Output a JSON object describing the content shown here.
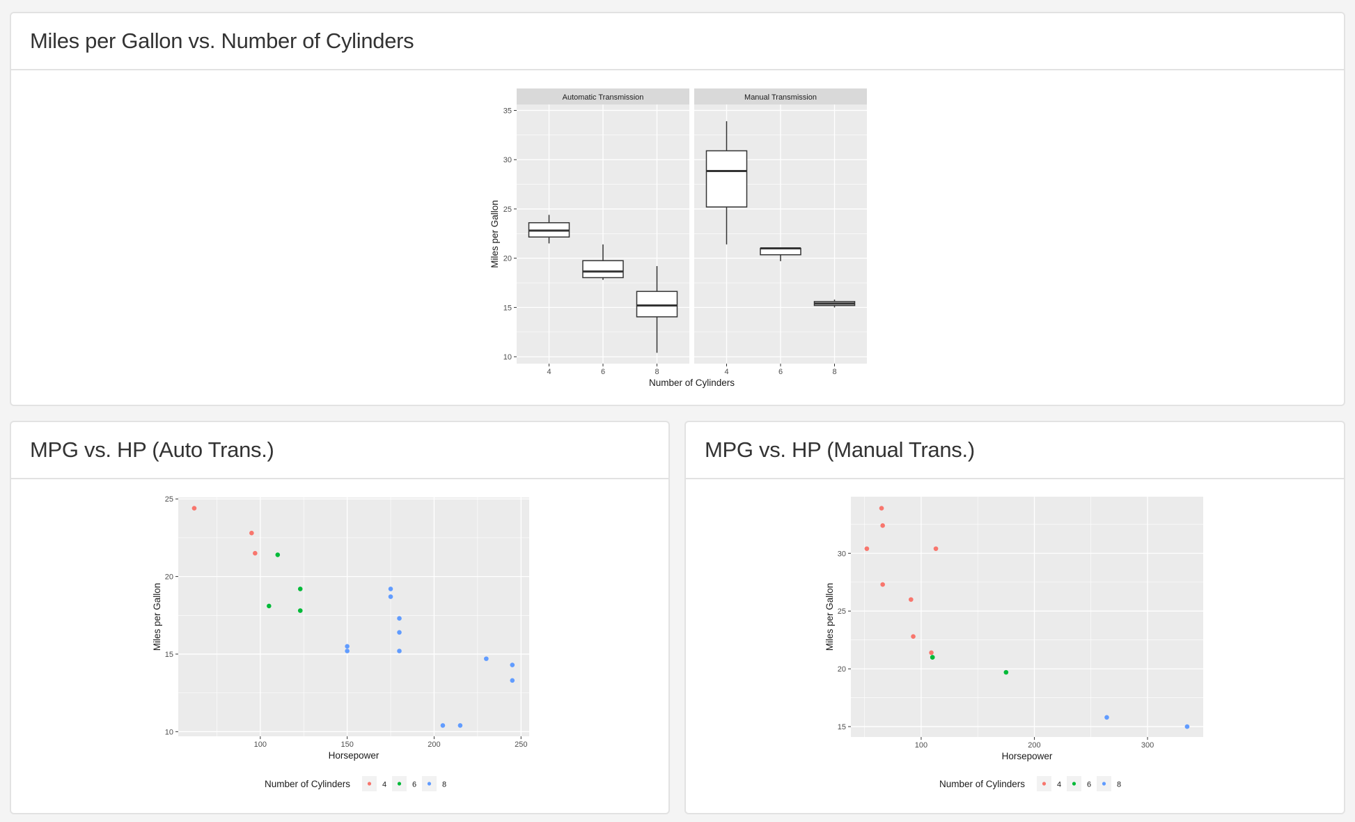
{
  "cards": {
    "top": {
      "title": "Miles per Gallon vs. Number of Cylinders"
    },
    "bottom_left": {
      "title": "MPG vs. HP (Auto Trans.)"
    },
    "bottom_right": {
      "title": "MPG vs. HP (Manual Trans.)"
    }
  },
  "colors": {
    "cyl4": "#F8766D",
    "cyl6": "#00BA38",
    "cyl8": "#619CFF",
    "panel": "#EBEBEB",
    "strip": "#D9D9D9",
    "grid": "#FFFFFF"
  },
  "chart_data": [
    {
      "type": "box",
      "title": "Miles per Gallon vs. Number of Cylinders",
      "xlabel": "Number of Cylinders",
      "ylabel": "Miles per Gallon",
      "ylim": [
        9.3,
        35.6
      ],
      "yticks": [
        10,
        15,
        20,
        25,
        30,
        35
      ],
      "categories": [
        "4",
        "6",
        "8"
      ],
      "facets": [
        {
          "name": "Automatic Transmission",
          "boxes": [
            {
              "cat": "4",
              "min": 21.5,
              "q1": 22.15,
              "median": 22.8,
              "q3": 23.6,
              "max": 24.4
            },
            {
              "cat": "6",
              "min": 17.8,
              "q1": 18.03,
              "median": 18.65,
              "q3": 19.75,
              "max": 21.4
            },
            {
              "cat": "8",
              "min": 10.4,
              "q1": 14.05,
              "median": 15.2,
              "q3": 16.63,
              "max": 19.2
            }
          ]
        },
        {
          "name": "Manual Transmission",
          "boxes": [
            {
              "cat": "4",
              "min": 21.4,
              "q1": 25.2,
              "median": 28.85,
              "q3": 30.9,
              "max": 33.9
            },
            {
              "cat": "6",
              "min": 19.7,
              "q1": 20.35,
              "median": 21.0,
              "q3": 21.0,
              "max": 21.0
            },
            {
              "cat": "8",
              "min": 15.0,
              "q1": 15.2,
              "median": 15.4,
              "q3": 15.6,
              "max": 15.8
            }
          ]
        }
      ],
      "grid": true
    },
    {
      "type": "scatter",
      "title": "MPG vs. HP (Auto Trans.)",
      "xlabel": "Horsepower",
      "ylabel": "Miles per Gallon",
      "xlim": [
        52.8,
        254.7
      ],
      "ylim": [
        9.7,
        25.1
      ],
      "xticks": [
        100,
        150,
        200,
        250
      ],
      "yticks": [
        10,
        15,
        20,
        25
      ],
      "legend": {
        "title": "Number of Cylinders",
        "position": "bottom",
        "entries": [
          "4",
          "6",
          "8"
        ]
      },
      "series": [
        {
          "name": "4",
          "points": [
            [
              62,
              24.4
            ],
            [
              95,
              22.8
            ],
            [
              97,
              21.5
            ]
          ]
        },
        {
          "name": "6",
          "points": [
            [
              110,
              21.4
            ],
            [
              105,
              18.1
            ],
            [
              123,
              19.2
            ],
            [
              123,
              17.8
            ]
          ]
        },
        {
          "name": "8",
          "points": [
            [
              150,
              15.5
            ],
            [
              150,
              15.2
            ],
            [
              175,
              19.2
            ],
            [
              175,
              18.7
            ],
            [
              180,
              17.3
            ],
            [
              180,
              16.4
            ],
            [
              180,
              15.2
            ],
            [
              205,
              10.4
            ],
            [
              215,
              10.4
            ],
            [
              230,
              14.7
            ],
            [
              245,
              14.3
            ],
            [
              245,
              13.3
            ]
          ]
        }
      ],
      "grid": true
    },
    {
      "type": "scatter",
      "title": "MPG vs. HP (Manual Trans.)",
      "xlabel": "Horsepower",
      "ylabel": "Miles per Gallon",
      "xlim": [
        37.9,
        349.2
      ],
      "ylim": [
        14.1,
        34.9
      ],
      "xticks": [
        100,
        200,
        300
      ],
      "yticks": [
        15,
        20,
        25,
        30
      ],
      "legend": {
        "title": "Number of Cylinders",
        "position": "bottom",
        "entries": [
          "4",
          "6",
          "8"
        ]
      },
      "series": [
        {
          "name": "4",
          "points": [
            [
              66,
              32.4
            ],
            [
              52,
              30.4
            ],
            [
              65,
              33.9
            ],
            [
              66,
              27.3
            ],
            [
              91,
              26.0
            ],
            [
              113,
              30.4
            ],
            [
              109,
              21.4
            ],
            [
              93,
              22.8
            ]
          ]
        },
        {
          "name": "6",
          "points": [
            [
              110,
              21.0
            ],
            [
              110,
              21.0
            ],
            [
              175,
              19.7
            ]
          ]
        },
        {
          "name": "8",
          "points": [
            [
              264,
              15.8
            ],
            [
              335,
              15.0
            ]
          ]
        }
      ],
      "grid": true
    }
  ]
}
